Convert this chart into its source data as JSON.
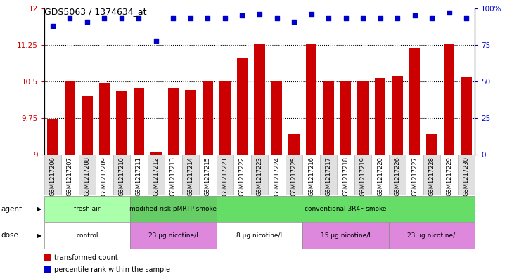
{
  "title": "GDS5063 / 1374634_at",
  "samples": [
    "GSM1217206",
    "GSM1217207",
    "GSM1217208",
    "GSM1217209",
    "GSM1217210",
    "GSM1217211",
    "GSM1217212",
    "GSM1217213",
    "GSM1217214",
    "GSM1217215",
    "GSM1217221",
    "GSM1217222",
    "GSM1217223",
    "GSM1217224",
    "GSM1217225",
    "GSM1217216",
    "GSM1217217",
    "GSM1217218",
    "GSM1217219",
    "GSM1217220",
    "GSM1217226",
    "GSM1217227",
    "GSM1217228",
    "GSM1217229",
    "GSM1217230"
  ],
  "bar_values": [
    9.72,
    10.5,
    10.2,
    10.47,
    10.3,
    10.35,
    9.05,
    10.35,
    10.32,
    10.5,
    10.52,
    10.97,
    11.28,
    10.5,
    9.42,
    11.28,
    10.52,
    10.5,
    10.52,
    10.57,
    10.62,
    11.18,
    9.42,
    11.28,
    10.6
  ],
  "blue_values": [
    88,
    93,
    91,
    93,
    93,
    93,
    78,
    93,
    93,
    93,
    93,
    95,
    96,
    93,
    91,
    96,
    93,
    93,
    93,
    93,
    93,
    95,
    93,
    97,
    93
  ],
  "bar_color": "#cc0000",
  "dot_color": "#0000cc",
  "ylim_left": [
    9.0,
    12.0
  ],
  "ylim_right": [
    0,
    100
  ],
  "yticks_left": [
    9.0,
    9.75,
    10.5,
    11.25,
    12.0
  ],
  "yticks_right": [
    0,
    25,
    50,
    75,
    100
  ],
  "ytick_labels_left": [
    "9",
    "9.75",
    "10.5",
    "11.25",
    "12"
  ],
  "ytick_labels_right": [
    "0",
    "25",
    "50",
    "75",
    "100%"
  ],
  "hlines": [
    9.75,
    10.5,
    11.25
  ],
  "agent_groups": [
    {
      "label": "fresh air",
      "start": 0,
      "end": 5,
      "color": "#aaffaa"
    },
    {
      "label": "modified risk pMRTP smoke",
      "start": 5,
      "end": 10,
      "color": "#66cc66"
    },
    {
      "label": "conventional 3R4F smoke",
      "start": 10,
      "end": 25,
      "color": "#66dd66"
    }
  ],
  "dose_groups": [
    {
      "label": "control",
      "start": 0,
      "end": 5,
      "color": "#ffffff"
    },
    {
      "label": "23 μg nicotine/l",
      "start": 5,
      "end": 10,
      "color": "#dd88dd"
    },
    {
      "label": "8 μg nicotine/l",
      "start": 10,
      "end": 15,
      "color": "#ffffff"
    },
    {
      "label": "15 μg nicotine/l",
      "start": 15,
      "end": 20,
      "color": "#dd88dd"
    },
    {
      "label": "23 μg nicotine/l",
      "start": 20,
      "end": 25,
      "color": "#dd88dd"
    }
  ],
  "legend_items": [
    {
      "label": "transformed count",
      "color": "#cc0000"
    },
    {
      "label": "percentile rank within the sample",
      "color": "#0000cc"
    }
  ],
  "agent_label": "agent",
  "dose_label": "dose",
  "background_color": "#ffffff",
  "tick_color_left": "#cc0000",
  "tick_color_right": "#0000cc",
  "tick_label_colors": [
    "#e0e0e0",
    "#ffffff"
  ]
}
